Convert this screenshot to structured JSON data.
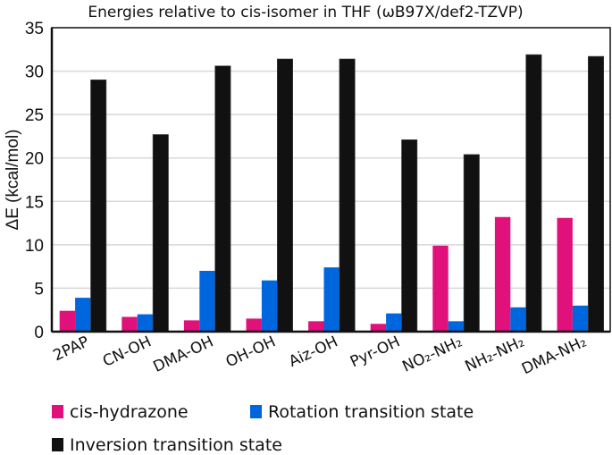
{
  "chart_data": {
    "type": "bar",
    "title": "Energies relative to cis-isomer in THF (ωB97X/def2-TZVP)",
    "xlabel": "",
    "ylabel": "ΔE (kcal/mol)",
    "ylim": [
      0,
      35
    ],
    "yticks": [
      0,
      5,
      10,
      15,
      20,
      25,
      30,
      35
    ],
    "grid": true,
    "legend_position": "bottom",
    "categories": [
      "2PAP",
      "CN-OH",
      "DMA-OH",
      "OH-OH",
      "Aiz-OH",
      "Pyr-OH",
      "NO₂-NH₂",
      "NH₂-NH₂",
      "DMA-NH₂"
    ],
    "series": [
      {
        "name": "cis-hydrazone",
        "color": "#e0117a",
        "values": [
          2.4,
          1.7,
          1.3,
          1.5,
          1.2,
          0.9,
          9.9,
          13.2,
          13.1
        ]
      },
      {
        "name": "Rotation transition state",
        "color": "#0066dd",
        "values": [
          3.9,
          2.0,
          7.0,
          5.9,
          7.4,
          2.1,
          1.2,
          2.8,
          3.0
        ]
      },
      {
        "name": "Inversion transition state",
        "color": "#111111",
        "values": [
          29.0,
          22.7,
          30.6,
          31.4,
          31.4,
          22.1,
          20.4,
          31.9,
          31.7
        ]
      }
    ]
  }
}
